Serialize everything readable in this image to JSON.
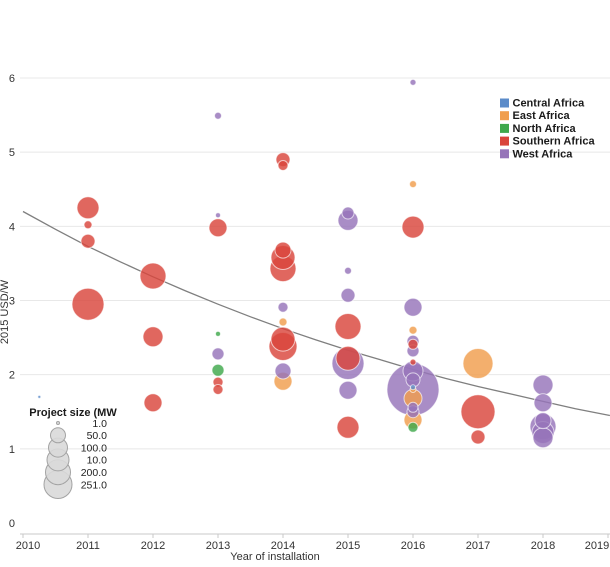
{
  "chart_data": {
    "type": "scatter",
    "title": "",
    "xlabel": "Year of installation",
    "ylabel": "2015 USD/W",
    "xlim": [
      2010,
      2019
    ],
    "ylim": [
      0,
      6
    ],
    "x_tick_labels": [
      "2010",
      "2011",
      "2012",
      "2013",
      "2014",
      "2015",
      "2016",
      "2017",
      "2018",
      "2019"
    ],
    "x_tick_values": [
      2010,
      2011,
      2012,
      2013,
      2014,
      2015,
      2016,
      2017,
      2018,
      2019
    ],
    "y_tick_labels": [
      "0",
      "1",
      "2",
      "3",
      "4",
      "5",
      "6"
    ],
    "y_tick_values": [
      0,
      1,
      2,
      3,
      4,
      5,
      6
    ],
    "grid": "horizontal",
    "legend_position": "top-right",
    "point_fields": [
      "year",
      "usd_per_w",
      "radius_px"
    ],
    "series": [
      {
        "name": "Central Africa",
        "color": "#5B8BC9",
        "points": [
          [
            2016,
            1.83,
            2.5
          ],
          [
            2010.25,
            1.7,
            1.5
          ]
        ]
      },
      {
        "name": "East Africa",
        "color": "#F09E4D",
        "points": [
          [
            2014,
            2.71,
            4
          ],
          [
            2014,
            1.91,
            9
          ],
          [
            2016,
            4.57,
            3.5
          ],
          [
            2016,
            2.6,
            4
          ],
          [
            2016,
            1.8,
            3
          ],
          [
            2016,
            1.68,
            9
          ],
          [
            2016,
            1.39,
            9
          ],
          [
            2017,
            2.15,
            15
          ]
        ]
      },
      {
        "name": "North Africa",
        "color": "#3FA84C",
        "points": [
          [
            2013,
            2.55,
            2.5
          ],
          [
            2013,
            2.06,
            6
          ],
          [
            2016,
            1.29,
            5
          ]
        ]
      },
      {
        "name": "Southern Africa",
        "color": "#D9453C",
        "points": [
          [
            2011,
            4.25,
            11
          ],
          [
            2011,
            4.02,
            4
          ],
          [
            2011,
            3.8,
            7
          ],
          [
            2011,
            2.95,
            16
          ],
          [
            2012,
            3.33,
            13
          ],
          [
            2012,
            2.51,
            10
          ],
          [
            2012,
            1.62,
            9
          ],
          [
            2013,
            3.98,
            9
          ],
          [
            2013,
            1.9,
            5
          ],
          [
            2013,
            1.8,
            5
          ],
          [
            2014,
            4.9,
            7
          ],
          [
            2014,
            4.82,
            5
          ],
          [
            2014,
            3.68,
            8
          ],
          [
            2014,
            3.58,
            12
          ],
          [
            2014,
            3.43,
            13
          ],
          [
            2014,
            2.48,
            12
          ],
          [
            2014,
            2.38,
            14
          ],
          [
            2015,
            2.65,
            13
          ],
          [
            2015,
            2.22,
            12
          ],
          [
            2015,
            1.29,
            11
          ],
          [
            2016,
            3.99,
            11
          ],
          [
            2016,
            2.41,
            5
          ],
          [
            2016,
            2.17,
            3
          ],
          [
            2017,
            1.5,
            17
          ],
          [
            2017,
            1.16,
            7
          ]
        ]
      },
      {
        "name": "West Africa",
        "color": "#9674B9",
        "points": [
          [
            2013,
            5.49,
            3.5
          ],
          [
            2013,
            4.15,
            2.5
          ],
          [
            2013,
            2.28,
            6
          ],
          [
            2014,
            2.91,
            5
          ],
          [
            2014,
            2.05,
            8
          ],
          [
            2015,
            4.18,
            6
          ],
          [
            2015,
            4.08,
            10
          ],
          [
            2015,
            3.4,
            3.5
          ],
          [
            2015,
            3.07,
            7
          ],
          [
            2015,
            2.15,
            16
          ],
          [
            2015,
            1.79,
            9
          ],
          [
            2016,
            5.94,
            3
          ],
          [
            2016,
            2.91,
            9
          ],
          [
            2016,
            2.45,
            6
          ],
          [
            2016,
            2.32,
            6
          ],
          [
            2016,
            2.05,
            10
          ],
          [
            2016,
            1.93,
            7
          ],
          [
            2016,
            1.8,
            26
          ],
          [
            2016,
            1.56,
            5
          ],
          [
            2016,
            1.5,
            6
          ],
          [
            2018,
            1.86,
            10
          ],
          [
            2018,
            1.62,
            9
          ],
          [
            2018,
            1.38,
            8
          ],
          [
            2018,
            1.3,
            13
          ],
          [
            2018,
            1.22,
            11
          ],
          [
            2018,
            1.15,
            10
          ]
        ]
      }
    ],
    "trend": {
      "color": "#7F7F7F",
      "points": [
        [
          2010,
          4.2
        ],
        [
          2010.5,
          3.96
        ],
        [
          2011,
          3.73
        ],
        [
          2011.5,
          3.52
        ],
        [
          2012,
          3.32
        ],
        [
          2012.5,
          3.13
        ],
        [
          2013,
          2.95
        ],
        [
          2013.5,
          2.78
        ],
        [
          2014,
          2.62
        ],
        [
          2014.5,
          2.47
        ],
        [
          2015,
          2.33
        ],
        [
          2015.5,
          2.2
        ],
        [
          2016,
          2.07
        ],
        [
          2016.5,
          1.95
        ],
        [
          2017,
          1.84
        ],
        [
          2017.5,
          1.74
        ],
        [
          2018,
          1.64
        ],
        [
          2018.5,
          1.54
        ],
        [
          2019.03,
          1.45
        ]
      ]
    },
    "size_legend": {
      "title": "Project size (MW",
      "entries": [
        {
          "label": "1.0",
          "r": 1.5
        },
        {
          "label": "50.0",
          "r": 7.5
        },
        {
          "label": "100.0",
          "r": 9.5
        },
        {
          "label": "10.0",
          "r": 11
        },
        {
          "label": "200.0",
          "r": 12.5
        },
        {
          "label": "251.0",
          "r": 14
        }
      ],
      "circle_fill": "#D9D9D9",
      "circle_stroke": "#A3A3A3"
    },
    "colors": {
      "gridline": "#E8E8E8",
      "axis_line": "#C8C8C8",
      "tick_text": "#333333"
    }
  }
}
